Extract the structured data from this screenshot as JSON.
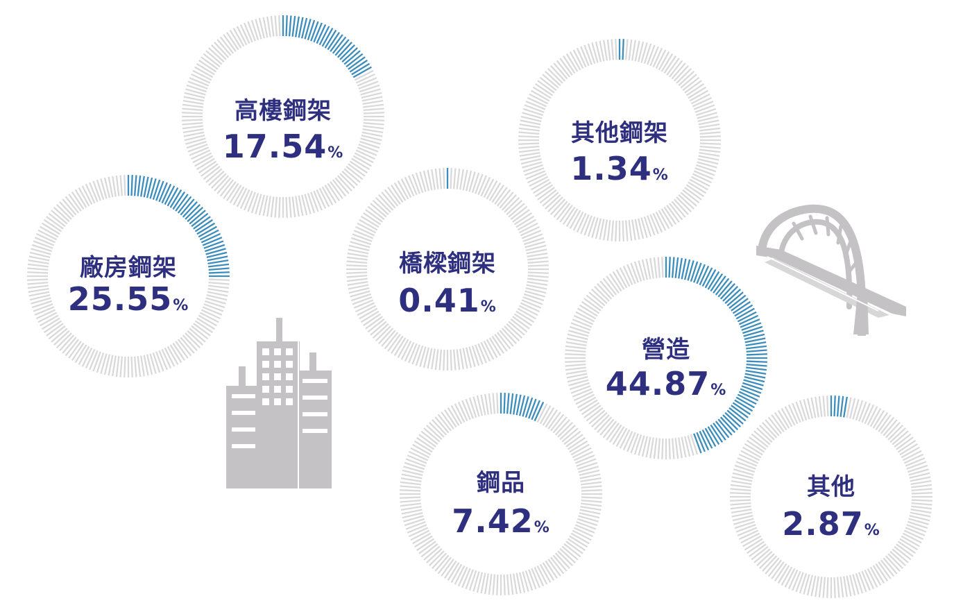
{
  "chart_data": {
    "type": "radial-gauge",
    "unit": "%",
    "items": [
      {
        "label": "高樓鋼架",
        "value": 17.54
      },
      {
        "label": "廠房鋼架",
        "value": 25.55
      },
      {
        "label": "橋樑鋼架",
        "value": 0.41
      },
      {
        "label": "其他鋼架",
        "value": 1.34
      },
      {
        "label": "營造",
        "value": 44.87
      },
      {
        "label": "鋼品",
        "value": 7.42
      },
      {
        "label": "其他",
        "value": 2.87
      }
    ]
  },
  "colors": {
    "filled": "#3c8dbc",
    "track": "#d9d9d9",
    "text": "#2e2f7f",
    "illustration": "#c4c2c4"
  },
  "illustrations": [
    "building-icon",
    "bridge-icon"
  ]
}
